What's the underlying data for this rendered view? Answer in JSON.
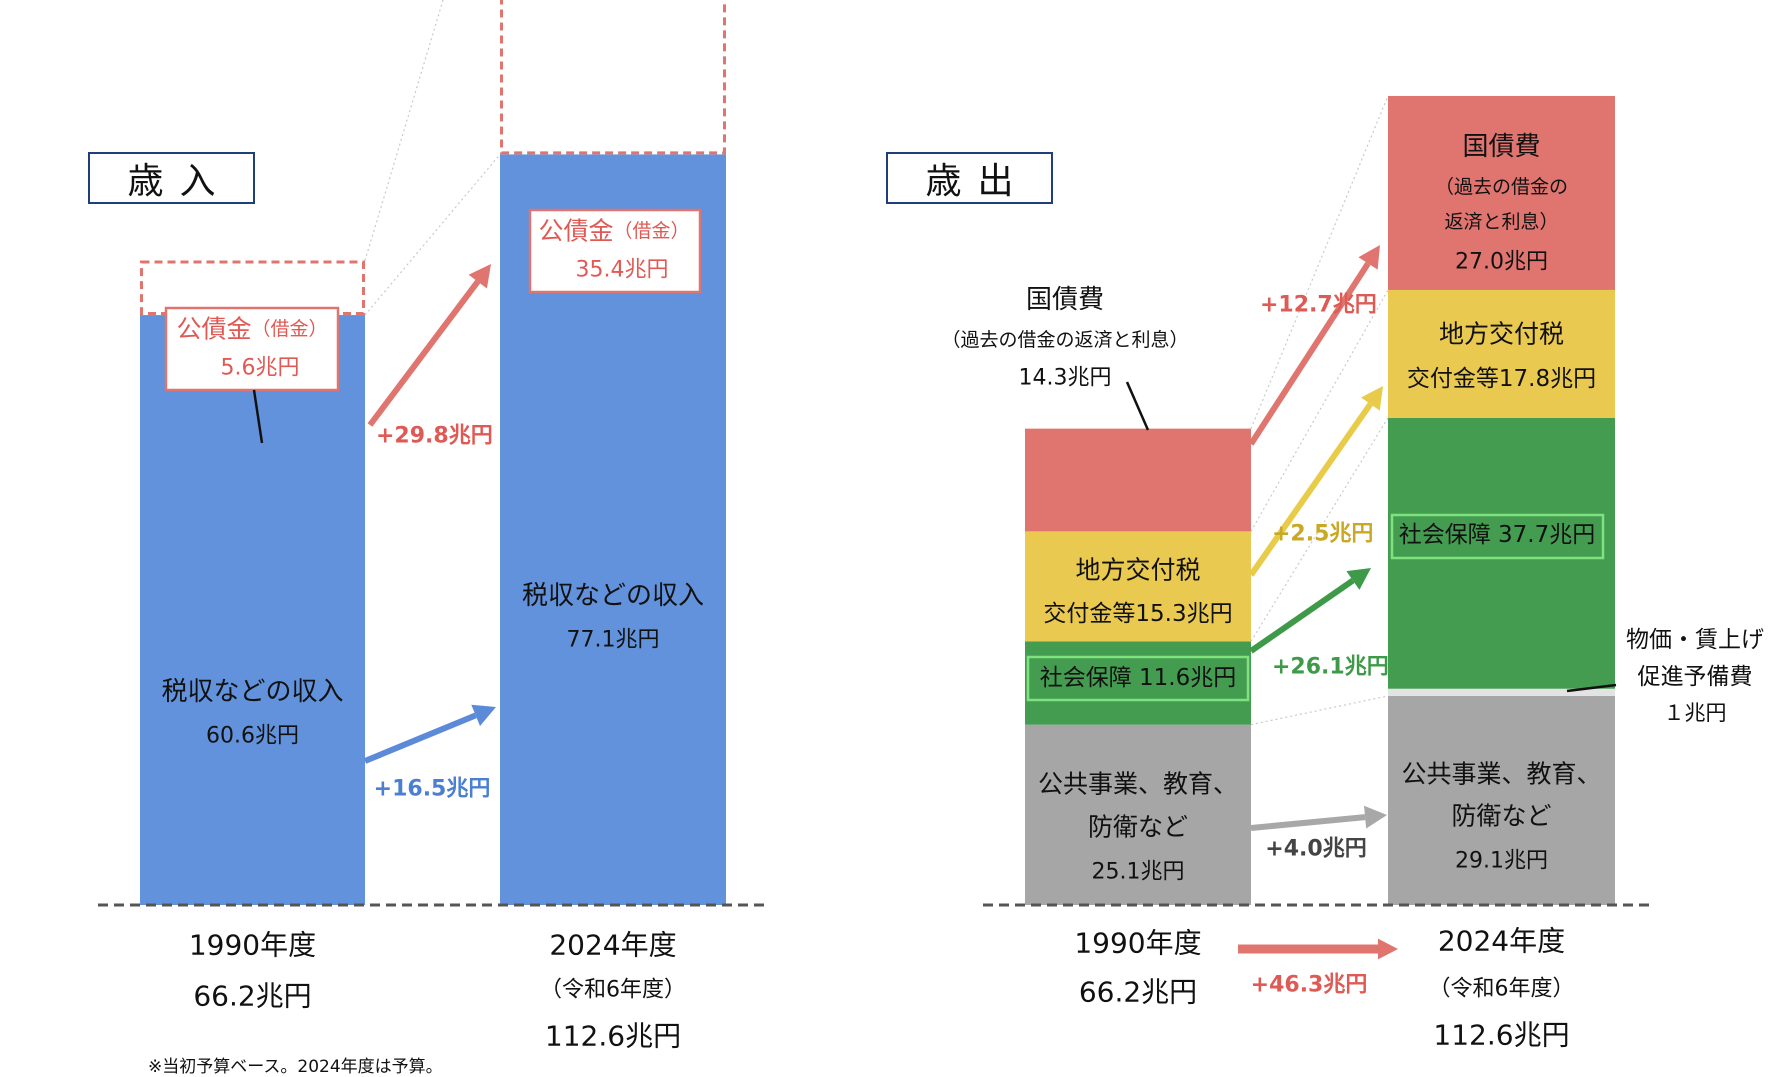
{
  "revenue": {
    "title": "歳入",
    "note": "※当初予算ベース。2024年度は予算。"
  },
  "expenditure": {
    "title": "歳出"
  },
  "colors": {
    "blue": "#6192db",
    "red": "#e07570",
    "yellow": "#e9c94f",
    "green": "#439c4f",
    "gray": "#a6a6a6",
    "lightgray": "#e3e3e3",
    "arrow_blue": "#5b8bd8",
    "arrow_red": "#e07570",
    "arrow_yellow": "#e8cc49",
    "arrow_green": "#3e9a48",
    "arrow_gray": "#a8a8a8",
    "label_red": "#e05a55",
    "label_yellow": "#c9a826",
    "label_green": "#3e9a48",
    "label_blue": "#4a7fd2"
  },
  "chart_data": [
    {
      "type": "bar",
      "stacked": true,
      "title": "歳入",
      "categories": [
        "1990年度",
        "2024年度"
      ],
      "category_sublabels": [
        "",
        "（令和6年度）"
      ],
      "totals": [
        66.2,
        112.6
      ],
      "total_labels": [
        "66.2兆円",
        "112.6兆円"
      ],
      "series": [
        {
          "name": "税収などの収入",
          "values": [
            60.6,
            77.1
          ],
          "labels": [
            "60.6兆円",
            "77.1兆円"
          ]
        },
        {
          "name": "公債金",
          "name_suffix": "（借金）",
          "values": [
            5.6,
            35.4
          ],
          "labels": [
            "5.6兆円",
            "35.4兆円"
          ]
        }
      ],
      "changes": [
        {
          "series": "税収などの収入",
          "label": "+16.5兆円"
        },
        {
          "series": "公債金",
          "label": "+29.8兆円"
        }
      ]
    },
    {
      "type": "bar",
      "stacked": true,
      "title": "歳出",
      "categories": [
        "1990年度",
        "2024年度"
      ],
      "category_sublabels": [
        "",
        "（令和6年度）"
      ],
      "totals": [
        66.2,
        112.6
      ],
      "total_labels": [
        "66.2兆円",
        "112.6兆円"
      ],
      "total_change": "+46.3兆円",
      "series": [
        {
          "name": "公共事業、教育、防衛など",
          "values": [
            25.1,
            29.1
          ],
          "labels": [
            "25.1兆円",
            "29.1兆円"
          ]
        },
        {
          "name": "物価・賃上げ促進予備費",
          "values": [
            0,
            1
          ],
          "labels": [
            "",
            "１兆円"
          ]
        },
        {
          "name": "社会保障",
          "values": [
            11.6,
            37.7
          ],
          "labels": [
            "11.6兆円",
            "37.7兆円"
          ]
        },
        {
          "name": "地方交付税交付金等",
          "values": [
            15.3,
            17.8
          ],
          "labels": [
            "15.3兆円",
            "17.8兆円"
          ]
        },
        {
          "name": "国債費",
          "name_suffix": "（過去の借金の返済と利息）",
          "values": [
            14.3,
            27.0
          ],
          "labels": [
            "14.3兆円",
            "27.0兆円"
          ]
        }
      ],
      "changes": [
        {
          "series": "公共事業、教育、防衛など",
          "label": "+4.0兆円"
        },
        {
          "series": "社会保障",
          "label": "+26.1兆円"
        },
        {
          "series": "地方交付税交付金等",
          "label": "+2.5兆円"
        },
        {
          "series": "国債費",
          "label": "+12.7兆円"
        }
      ],
      "text": {
        "public_line1": "公共事業、教育、",
        "public_line2": "防衛など",
        "local_line1": "地方交付税",
        "local_line2_1990": "交付金等15.3兆円",
        "local_line2_2024": "交付金等17.8兆円",
        "social_1990": "社会保障 11.6兆円",
        "social_2024": "社会保障 37.7兆円",
        "debt_name": "国債費",
        "debt_sub_1990": "（過去の借金の返済と利息）",
        "debt_sub_2024_line1": "（過去の借金の",
        "debt_sub_2024_line2": "返済と利息）",
        "reserve_line1": "物価・賃上げ",
        "reserve_line2": "促進予備費",
        "reserve_value": "１兆円"
      }
    }
  ]
}
